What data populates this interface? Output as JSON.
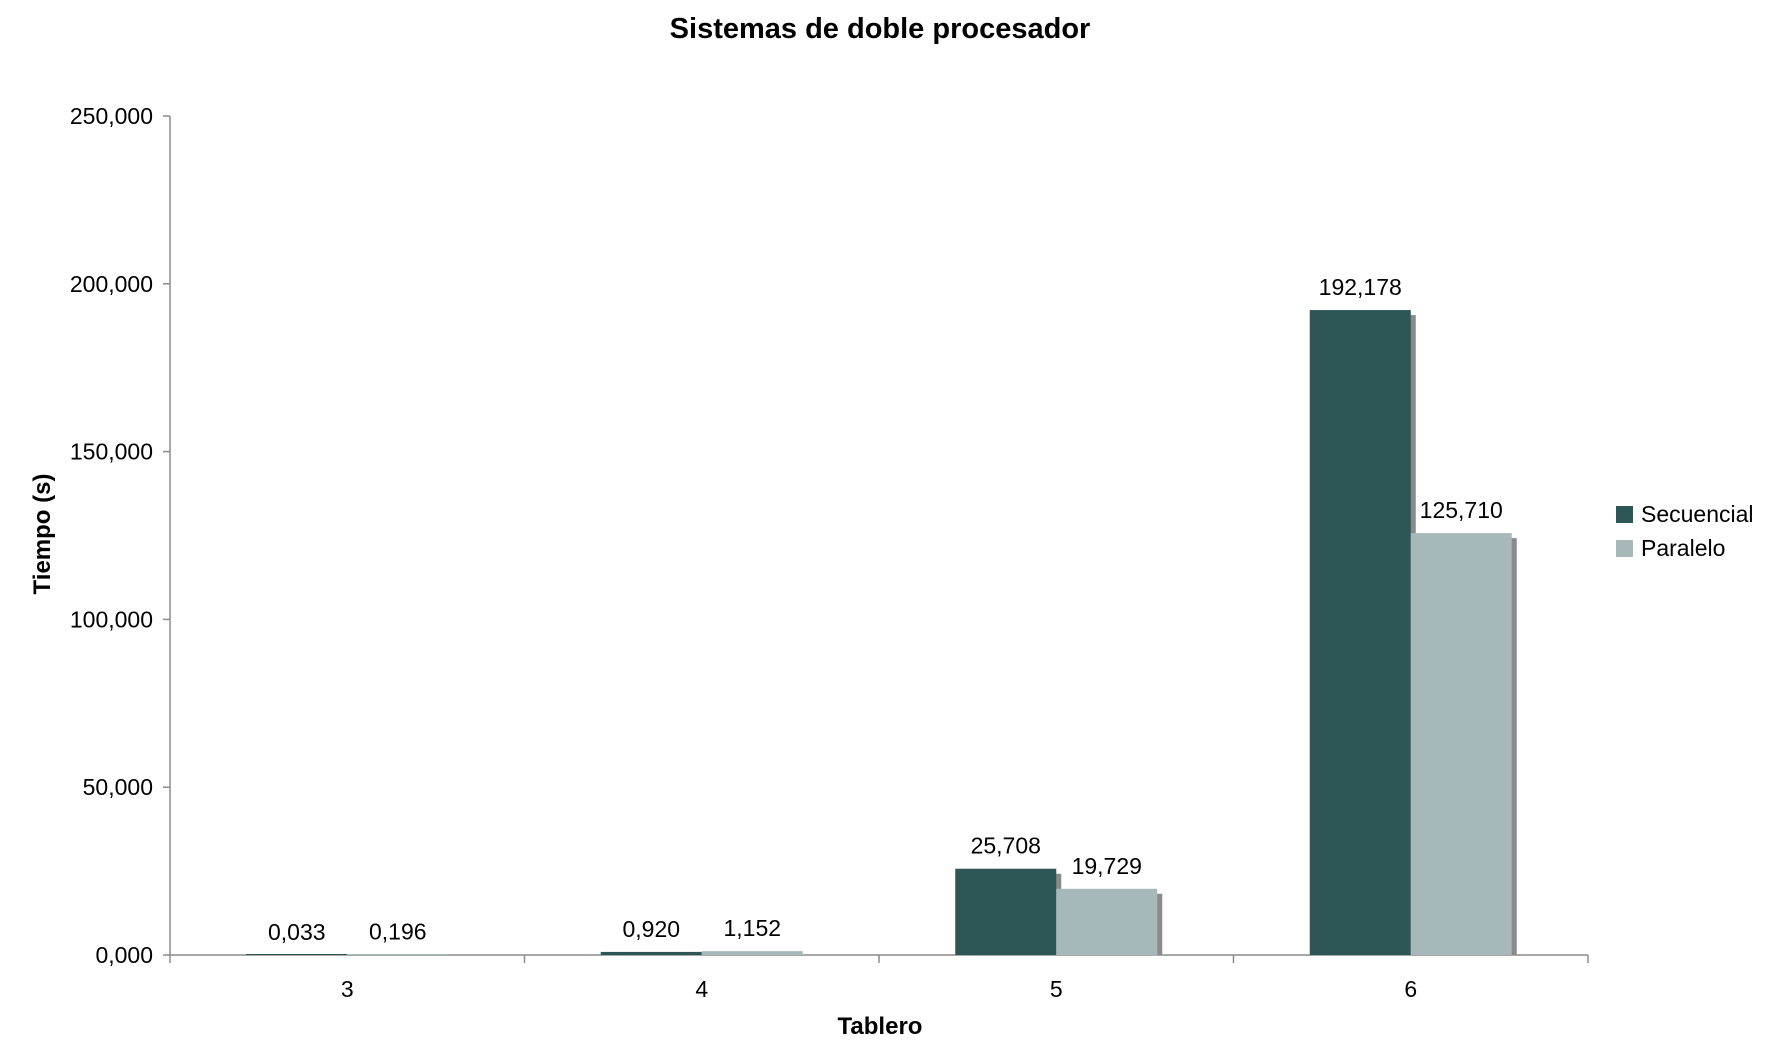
{
  "chart_data": {
    "type": "bar",
    "title": "Sistemas de doble procesador",
    "xlabel": "Tablero",
    "ylabel": "Tiempo (s)",
    "categories": [
      "3",
      "4",
      "5",
      "6"
    ],
    "series": [
      {
        "name": "Secuencial",
        "color": "#2f5656",
        "values": [
          0.033,
          0.92,
          25.708,
          192.178
        ],
        "labels": [
          "0,033",
          "0,920",
          "25,708",
          "192,178"
        ]
      },
      {
        "name": "Paralelo",
        "color": "#a6b8b9",
        "values": [
          0.196,
          1.152,
          19.729,
          125.71
        ],
        "labels": [
          "0,196",
          "1,152",
          "19,729",
          "125,710"
        ]
      }
    ],
    "ylim": [
      0,
      250
    ],
    "yticks": [
      0,
      50,
      100,
      150,
      200,
      250
    ],
    "ytick_labels": [
      "0,000",
      "50,000",
      "100,000",
      "150,000",
      "200,000",
      "250,000"
    ],
    "grid": false,
    "legend_position": "right"
  }
}
